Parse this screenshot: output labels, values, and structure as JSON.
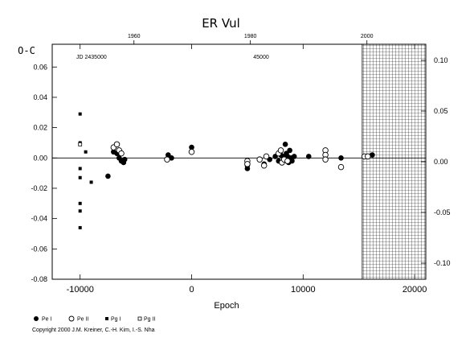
{
  "chart_data": {
    "type": "scatter",
    "title": "ER Vul",
    "xlabel": "Epoch",
    "ylabel": "O-C",
    "xlim": [
      -12500,
      21000
    ],
    "ylim": [
      -0.08,
      0.075
    ],
    "right_ylim": [
      -0.1,
      0.1
    ],
    "x_ticks": [
      -10000,
      0,
      10000,
      20000
    ],
    "x_tick_labels": [
      "-10000",
      "0",
      "10000",
      "20000"
    ],
    "y_ticks": [
      -0.08,
      -0.06,
      -0.04,
      -0.02,
      0.0,
      0.02,
      0.04,
      0.06
    ],
    "y_tick_labels": [
      "-0.08",
      "-0.06",
      "-0.04",
      "-0.02",
      "0.00",
      "0.02",
      "0.04",
      "0.06"
    ],
    "right_y_ticks": [
      -0.1,
      -0.05,
      0.0,
      0.05,
      0.1
    ],
    "right_y_tick_labels": [
      "-0.10",
      "-0.05",
      "0.00",
      "0.05",
      "0.10"
    ],
    "top_axis": {
      "label_left": "JD 2435000",
      "label_mid": "45000",
      "year_ticks": [
        -5170,
        5270,
        15720
      ],
      "year_labels": [
        "1960",
        "1980",
        "2000"
      ]
    },
    "grid": false,
    "zero_line": true,
    "hatched_region_x": [
      15300,
      21000
    ],
    "legend_position": "bottom-left",
    "series": [
      {
        "name": "Pe I",
        "marker": "filled-circle",
        "points": [
          [
            -7500,
            -0.012
          ],
          [
            -7000,
            0.004
          ],
          [
            -6700,
            0.003
          ],
          [
            -6500,
            0.0
          ],
          [
            -6300,
            -0.002
          ],
          [
            -6100,
            -0.003
          ],
          [
            -6000,
            -0.001
          ],
          [
            -2100,
            0.002
          ],
          [
            -1800,
            0.0
          ],
          [
            0,
            0.007
          ],
          [
            5000,
            -0.007
          ],
          [
            5000,
            -0.005
          ],
          [
            6500,
            -0.004
          ],
          [
            7000,
            -0.001
          ],
          [
            7500,
            0.001
          ],
          [
            7800,
            -0.002
          ],
          [
            8000,
            0.002
          ],
          [
            8200,
            0.001
          ],
          [
            8400,
            0.009
          ],
          [
            8500,
            0.003
          ],
          [
            8600,
            0.001
          ],
          [
            8700,
            -0.003
          ],
          [
            8800,
            0.005
          ],
          [
            8900,
            0.0
          ],
          [
            9000,
            -0.002
          ],
          [
            9200,
            0.001
          ],
          [
            10500,
            0.001
          ],
          [
            13400,
            0.0
          ],
          [
            16200,
            0.002
          ]
        ]
      },
      {
        "name": "Pe II",
        "marker": "open-circle",
        "points": [
          [
            -7000,
            0.007
          ],
          [
            -6700,
            0.009
          ],
          [
            -6500,
            0.005
          ],
          [
            -6300,
            0.003
          ],
          [
            -2200,
            -0.001
          ],
          [
            0,
            0.004
          ],
          [
            5000,
            -0.002
          ],
          [
            5000,
            -0.004
          ],
          [
            6100,
            -0.001
          ],
          [
            6500,
            -0.005
          ],
          [
            6700,
            0.001
          ],
          [
            7800,
            0.003
          ],
          [
            8000,
            0.005
          ],
          [
            8100,
            -0.003
          ],
          [
            8300,
            -0.001
          ],
          [
            8600,
            -0.002
          ],
          [
            12000,
            0.005
          ],
          [
            12000,
            0.002
          ],
          [
            12000,
            -0.001
          ],
          [
            13400,
            -0.006
          ],
          [
            15500,
            0.001
          ],
          [
            15800,
            0.001
          ]
        ]
      },
      {
        "name": "Pg I",
        "marker": "filled-square",
        "points": [
          [
            -10000,
            0.029
          ],
          [
            -10000,
            0.01
          ],
          [
            -10000,
            -0.007
          ],
          [
            -10000,
            -0.013
          ],
          [
            -10000,
            -0.03
          ],
          [
            -10000,
            -0.035
          ],
          [
            -10000,
            -0.046
          ],
          [
            -9500,
            0.004
          ],
          [
            -9000,
            -0.016
          ]
        ]
      },
      {
        "name": "Pg II",
        "marker": "open-square",
        "points": [
          [
            -10000,
            0.009
          ]
        ]
      }
    ]
  },
  "copyright": "Copyright 2000 J.M. Kreiner, C.-H. Kim, I.-S. Nha"
}
